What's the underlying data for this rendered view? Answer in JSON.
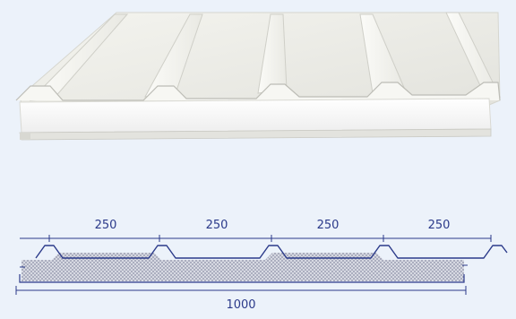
{
  "image": {
    "subject": "sandwich-panel-product-photo",
    "background_color": "#ecf2fa"
  },
  "diagram": {
    "rib_spacing_labels": [
      "250",
      "250",
      "250",
      "250"
    ],
    "total_width_label": "1000",
    "line_color": "#2b3a8a",
    "core_fill_color": "#c9cbd6"
  }
}
